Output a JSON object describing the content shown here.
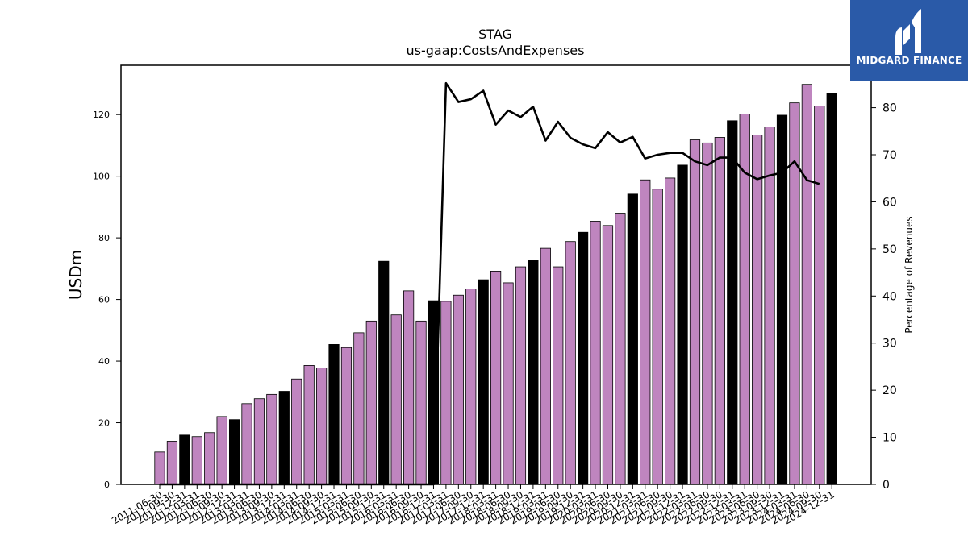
{
  "chart_data": {
    "type": "bar",
    "title": "STAG",
    "subtitle": "us-gaap:CostsAndExpenses",
    "ylabel": "USDm",
    "y2label": "Percentage of Revenues",
    "ylim": [
      0,
      136
    ],
    "y2lim": [
      0,
      89
    ],
    "yticks": [
      0,
      20,
      40,
      60,
      80,
      100,
      120
    ],
    "y2ticks": [
      0,
      10,
      20,
      30,
      40,
      50,
      60,
      70,
      80
    ],
    "categories": [
      "2011-06-30",
      "2011-09-30",
      "2011-12-31",
      "2012-03-31",
      "2012-06-30",
      "2012-09-30",
      "2012-12-31",
      "2013-03-31",
      "2013-06-30",
      "2013-09-30",
      "2013-12-31",
      "2014-03-31",
      "2014-06-30",
      "2014-09-30",
      "2014-12-31",
      "2015-03-31",
      "2015-06-30",
      "2015-09-30",
      "2015-12-31",
      "2016-03-31",
      "2016-06-30",
      "2016-09-30",
      "2016-12-31",
      "2017-03-31",
      "2017-06-30",
      "2017-09-30",
      "2017-12-31",
      "2018-03-31",
      "2018-06-30",
      "2018-09-30",
      "2018-12-31",
      "2019-03-31",
      "2019-06-30",
      "2019-09-30",
      "2019-12-31",
      "2020-03-31",
      "2020-06-30",
      "2020-09-30",
      "2020-12-31",
      "2021-03-31",
      "2021-06-30",
      "2021-09-30",
      "2021-12-31",
      "2022-03-31",
      "2022-06-30",
      "2022-09-30",
      "2022-12-31",
      "2023-03-31",
      "2023-06-30",
      "2023-09-30",
      "2023-12-31",
      "2024-03-31",
      "2024-06-30",
      "2024-09-30",
      "2024-12-31"
    ],
    "series": [
      {
        "type": "bar",
        "values": [
          10.5,
          14.0,
          16.0,
          15.5,
          16.8,
          22.0,
          21.0,
          26.2,
          27.8,
          29.2,
          30.2,
          34.2,
          38.6,
          37.8,
          45.4,
          44.4,
          49.2,
          53.0,
          72.4,
          55.0,
          62.8,
          53.0,
          59.6,
          59.4,
          61.4,
          63.4,
          66.4,
          69.2,
          65.4,
          70.6,
          72.6,
          76.6,
          70.6,
          78.8,
          81.8,
          85.4,
          84.0,
          88.0,
          94.2,
          98.8,
          95.8,
          99.4,
          103.6,
          111.8,
          110.8,
          112.6,
          118.0,
          120.2,
          113.4,
          116.0,
          119.8,
          123.8,
          129.8,
          122.8,
          127.0
        ],
        "color": "#bf85bf",
        "highlight_color": "#000000",
        "highlight_categories": [
          "2011-12-31",
          "2012-12-31",
          "2013-12-31",
          "2014-12-31",
          "2015-12-31",
          "2016-12-31",
          "2017-12-31",
          "2018-12-31",
          "2019-12-31",
          "2020-12-31",
          "2021-12-31",
          "2022-12-31",
          "2023-12-31",
          "2024-12-31"
        ]
      },
      {
        "type": "line",
        "axis": "right",
        "color": "#000000",
        "values": [
          0,
          0,
          0,
          0,
          0,
          0,
          0,
          0,
          0,
          0,
          0,
          0,
          0,
          0,
          0,
          0,
          0,
          0,
          0,
          0,
          0,
          0,
          0,
          85.2,
          81.2,
          81.8,
          83.6,
          76.4,
          79.4,
          78.0,
          80.2,
          73.0,
          77.0,
          73.6,
          72.2,
          71.4,
          74.8,
          72.6,
          73.8,
          69.2,
          70.0,
          70.4,
          70.4,
          68.6,
          67.8,
          69.4,
          69.4,
          66.2,
          64.8,
          65.6,
          66.2,
          68.6,
          64.6,
          63.8,
          null
        ]
      }
    ]
  },
  "logo": {
    "text": "MIDGARD FINANCE"
  }
}
